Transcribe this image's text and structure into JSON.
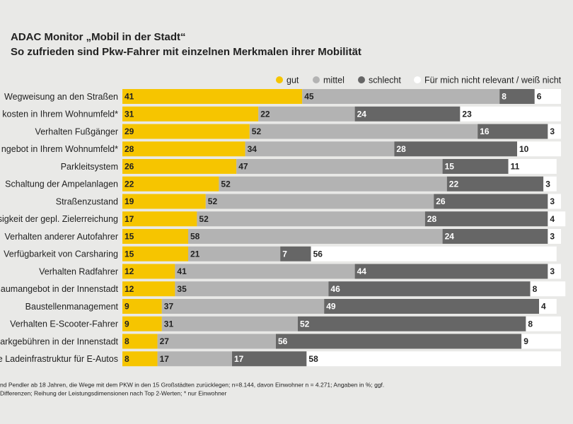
{
  "chart_data": {
    "type": "stacked-bar-horizontal",
    "title": "ADAC Monitor „Mobil in der Stadt“",
    "subtitle": "So zufrieden sind Pkw-Fahrer mit einzelnen Merkmalen ihrer Mobilität",
    "categories": [
      "Wegweisung an den Straßen",
      "kosten in Ihrem Wohnumfeld*",
      "Verhalten Fußgänger",
      "ngebot in Ihrem Wohnumfeld*",
      "Parkleitsystem",
      "Schaltung der Ampelanlagen",
      "Straßenzustand",
      "sigkeit der gepl. Zielerreichung",
      "Verhalten anderer Autofahrer",
      "Verfügbarkeit von Carsharing",
      "Verhalten Radfahrer",
      "aumangebot in der Innenstadt",
      "Baustellenmanagement",
      "Verhalten E-Scooter-Fahrer",
      "arkgebühren in der Innenstadt",
      "e Ladeinfrastruktur für E-Autos"
    ],
    "series": [
      {
        "name": "gut",
        "color": "#f6c500",
        "label_color": "#222222",
        "values": [
          41,
          31,
          29,
          28,
          26,
          22,
          19,
          17,
          15,
          15,
          12,
          12,
          9,
          9,
          8,
          8
        ]
      },
      {
        "name": "mittel",
        "color": "#b3b3b3",
        "label_color": "#222222",
        "values": [
          45,
          22,
          52,
          34,
          47,
          52,
          52,
          52,
          58,
          21,
          41,
          35,
          37,
          31,
          27,
          17
        ]
      },
      {
        "name": "schlecht",
        "color": "#666666",
        "label_color": "#ffffff",
        "values": [
          8,
          24,
          16,
          28,
          15,
          22,
          26,
          28,
          24,
          7,
          44,
          46,
          49,
          52,
          56,
          17
        ]
      },
      {
        "name": "Für mich nicht relevant / weiß nicht",
        "color": "#ffffff",
        "label_color": "#222222",
        "values": [
          6,
          23,
          3,
          10,
          11,
          3,
          3,
          4,
          3,
          56,
          3,
          8,
          4,
          8,
          9,
          58
        ]
      }
    ],
    "notes": [
      "nd Pendler ab 18 Jahren, die Wege mit dem PKW in den 15 Großstädten zurücklegen;  n=8.144, davon Einwohner n = 4.271; Angaben in %; ggf.",
      "Differenzen; Reihung der Leistungsdimensionen nach Top 2-Werten; * nur Einwohner"
    ]
  }
}
